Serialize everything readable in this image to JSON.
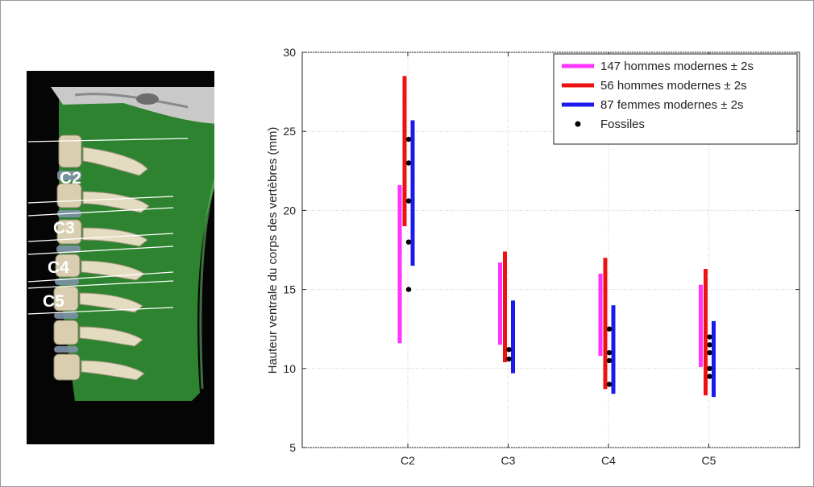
{
  "figure": {
    "vertebra_labels": [
      "C2",
      "C3",
      "C4",
      "C5"
    ]
  },
  "chart_data": {
    "type": "range-bars",
    "title": "",
    "xlabel": "",
    "ylabel": "Hauteur ventrale du corps des vertèbres (mm)",
    "categories": [
      "C2",
      "C3",
      "C4",
      "C5"
    ],
    "ylim": [
      5,
      30
    ],
    "yticks": [
      5,
      10,
      15,
      20,
      25,
      30
    ],
    "grid": true,
    "legend_position": "top-right",
    "series": [
      {
        "name": "147 hommes modernes ± 2s",
        "color": "#ff33ff",
        "ranges": [
          [
            11.6,
            21.6
          ],
          [
            11.5,
            16.7
          ],
          [
            10.8,
            16.0
          ],
          [
            10.1,
            15.3
          ]
        ]
      },
      {
        "name": "56 hommes modernes ± 2s",
        "color": "#ee1111",
        "ranges": [
          [
            19.0,
            28.5
          ],
          [
            10.4,
            17.4
          ],
          [
            8.7,
            17.0
          ],
          [
            8.3,
            16.3
          ]
        ]
      },
      {
        "name": "87 femmes modernes  ± 2s",
        "color": "#1a1aee",
        "ranges": [
          [
            16.5,
            25.7
          ],
          [
            9.7,
            14.3
          ],
          [
            8.4,
            14.0
          ],
          [
            8.2,
            13.0
          ]
        ]
      }
    ],
    "fossils": {
      "name": "Fossiles",
      "color": "#000000",
      "values": [
        [
          24.5,
          23.0,
          20.6,
          18.0,
          15.0
        ],
        [
          11.2,
          10.6
        ],
        [
          12.5,
          11.0,
          10.5,
          9.0
        ],
        [
          12.0,
          11.5,
          11.0,
          10.0,
          9.5
        ]
      ]
    }
  }
}
